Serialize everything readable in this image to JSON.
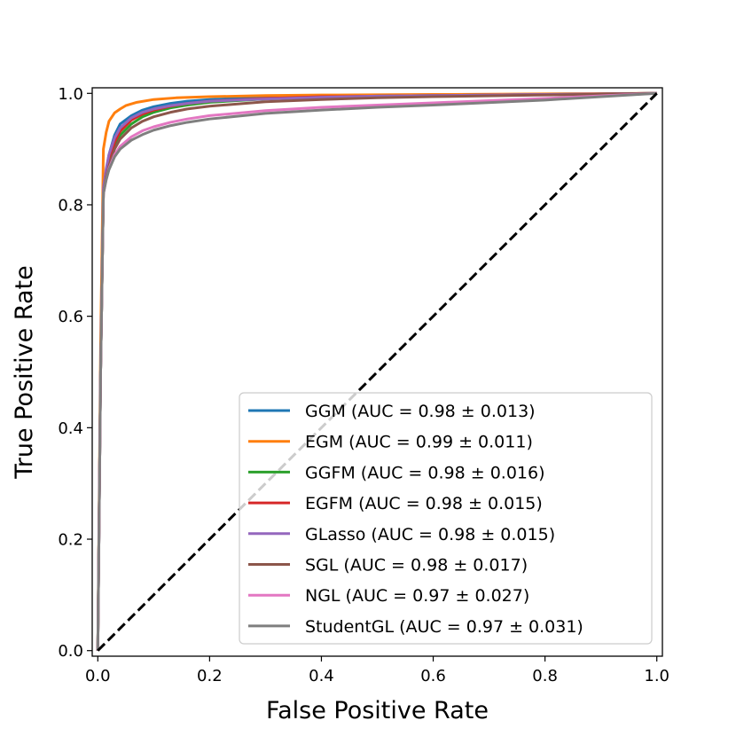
{
  "chart_data": {
    "type": "line",
    "title": "",
    "xlabel": "False Positive Rate",
    "ylabel": "True Positive Rate",
    "xlim": [
      -0.01,
      1.01
    ],
    "ylim": [
      -0.01,
      1.01
    ],
    "xticks": [
      0.0,
      0.2,
      0.4,
      0.6,
      0.8,
      1.0
    ],
    "yticks": [
      0.0,
      0.2,
      0.4,
      0.6,
      0.8,
      1.0
    ],
    "xtick_labels": [
      "0.0",
      "0.2",
      "0.4",
      "0.6",
      "0.8",
      "1.0"
    ],
    "ytick_labels": [
      "0.0",
      "0.2",
      "0.4",
      "0.6",
      "0.8",
      "1.0"
    ],
    "grid": false,
    "legend_position": "lower-right",
    "series": [
      {
        "name": "GGM (AUC = 0.98 ± 0.013)",
        "color": "#1f77b4",
        "x": [
          0,
          0.005,
          0.01,
          0.015,
          0.02,
          0.03,
          0.04,
          0.06,
          0.08,
          0.1,
          0.13,
          0.16,
          0.2,
          0.3,
          0.4,
          0.5,
          0.6,
          0.8,
          1.0
        ],
        "y": [
          0,
          0.5,
          0.82,
          0.86,
          0.89,
          0.925,
          0.945,
          0.96,
          0.97,
          0.976,
          0.982,
          0.986,
          0.989,
          0.993,
          0.995,
          0.996,
          0.997,
          0.998,
          1.0
        ]
      },
      {
        "name": "EGM (AUC = 0.99 ± 0.011)",
        "color": "#ff7f0e",
        "x": [
          0,
          0.005,
          0.01,
          0.015,
          0.02,
          0.03,
          0.04,
          0.05,
          0.07,
          0.1,
          0.14,
          0.2,
          0.3,
          0.4,
          0.6,
          0.8,
          1.0
        ],
        "y": [
          0,
          0.55,
          0.9,
          0.93,
          0.95,
          0.965,
          0.972,
          0.978,
          0.984,
          0.989,
          0.992,
          0.994,
          0.996,
          0.997,
          0.998,
          0.999,
          1.0
        ]
      },
      {
        "name": "GGFM (AUC = 0.98 ± 0.016)",
        "color": "#2ca02c",
        "x": [
          0,
          0.005,
          0.01,
          0.015,
          0.02,
          0.03,
          0.04,
          0.06,
          0.08,
          0.1,
          0.13,
          0.16,
          0.2,
          0.3,
          0.4,
          0.5,
          0.6,
          0.8,
          1.0
        ],
        "y": [
          0,
          0.5,
          0.82,
          0.85,
          0.875,
          0.905,
          0.925,
          0.945,
          0.958,
          0.966,
          0.974,
          0.979,
          0.984,
          0.99,
          0.993,
          0.995,
          0.996,
          0.998,
          1.0
        ]
      },
      {
        "name": "EGFM (AUC = 0.98 ± 0.015)",
        "color": "#d62728",
        "x": [
          0,
          0.005,
          0.01,
          0.015,
          0.02,
          0.03,
          0.04,
          0.06,
          0.08,
          0.1,
          0.13,
          0.16,
          0.2,
          0.3,
          0.4,
          0.5,
          0.6,
          0.8,
          1.0
        ],
        "y": [
          0,
          0.5,
          0.82,
          0.855,
          0.88,
          0.912,
          0.932,
          0.952,
          0.963,
          0.97,
          0.977,
          0.982,
          0.986,
          0.991,
          0.994,
          0.995,
          0.996,
          0.998,
          1.0
        ]
      },
      {
        "name": "GLasso (AUC = 0.98 ± 0.015)",
        "color": "#9467bd",
        "x": [
          0,
          0.005,
          0.01,
          0.015,
          0.02,
          0.03,
          0.04,
          0.06,
          0.08,
          0.1,
          0.13,
          0.16,
          0.2,
          0.3,
          0.4,
          0.5,
          0.6,
          0.8,
          1.0
        ],
        "y": [
          0,
          0.5,
          0.83,
          0.865,
          0.89,
          0.92,
          0.938,
          0.956,
          0.966,
          0.972,
          0.978,
          0.982,
          0.986,
          0.99,
          0.993,
          0.995,
          0.996,
          0.998,
          1.0
        ]
      },
      {
        "name": "SGL (AUC = 0.98 ± 0.017)",
        "color": "#8c564b",
        "x": [
          0,
          0.005,
          0.01,
          0.015,
          0.02,
          0.03,
          0.04,
          0.06,
          0.08,
          0.1,
          0.13,
          0.16,
          0.2,
          0.3,
          0.4,
          0.5,
          0.6,
          0.8,
          1.0
        ],
        "y": [
          0,
          0.5,
          0.82,
          0.85,
          0.87,
          0.9,
          0.918,
          0.938,
          0.95,
          0.958,
          0.966,
          0.972,
          0.977,
          0.985,
          0.989,
          0.992,
          0.994,
          0.997,
          1.0
        ]
      },
      {
        "name": "NGL (AUC = 0.97 ± 0.027)",
        "color": "#e377c2",
        "x": [
          0,
          0.005,
          0.01,
          0.015,
          0.02,
          0.03,
          0.04,
          0.06,
          0.08,
          0.1,
          0.13,
          0.16,
          0.2,
          0.3,
          0.4,
          0.5,
          0.6,
          0.8,
          1.0
        ],
        "y": [
          0,
          0.5,
          0.82,
          0.845,
          0.865,
          0.89,
          0.905,
          0.922,
          0.933,
          0.94,
          0.948,
          0.954,
          0.96,
          0.969,
          0.975,
          0.979,
          0.983,
          0.991,
          1.0
        ]
      },
      {
        "name": "StudentGL (AUC = 0.97 ± 0.031)",
        "color": "#7f7f7f",
        "x": [
          0,
          0.005,
          0.01,
          0.015,
          0.02,
          0.03,
          0.04,
          0.06,
          0.08,
          0.1,
          0.13,
          0.16,
          0.2,
          0.3,
          0.4,
          0.5,
          0.6,
          0.8,
          1.0
        ],
        "y": [
          0,
          0.5,
          0.82,
          0.845,
          0.863,
          0.886,
          0.9,
          0.916,
          0.926,
          0.934,
          0.942,
          0.948,
          0.954,
          0.964,
          0.97,
          0.975,
          0.979,
          0.988,
          1.0
        ]
      }
    ],
    "reference_line": {
      "x": [
        0,
        1
      ],
      "y": [
        0,
        1
      ],
      "color": "#000000",
      "style": "dashed"
    }
  }
}
